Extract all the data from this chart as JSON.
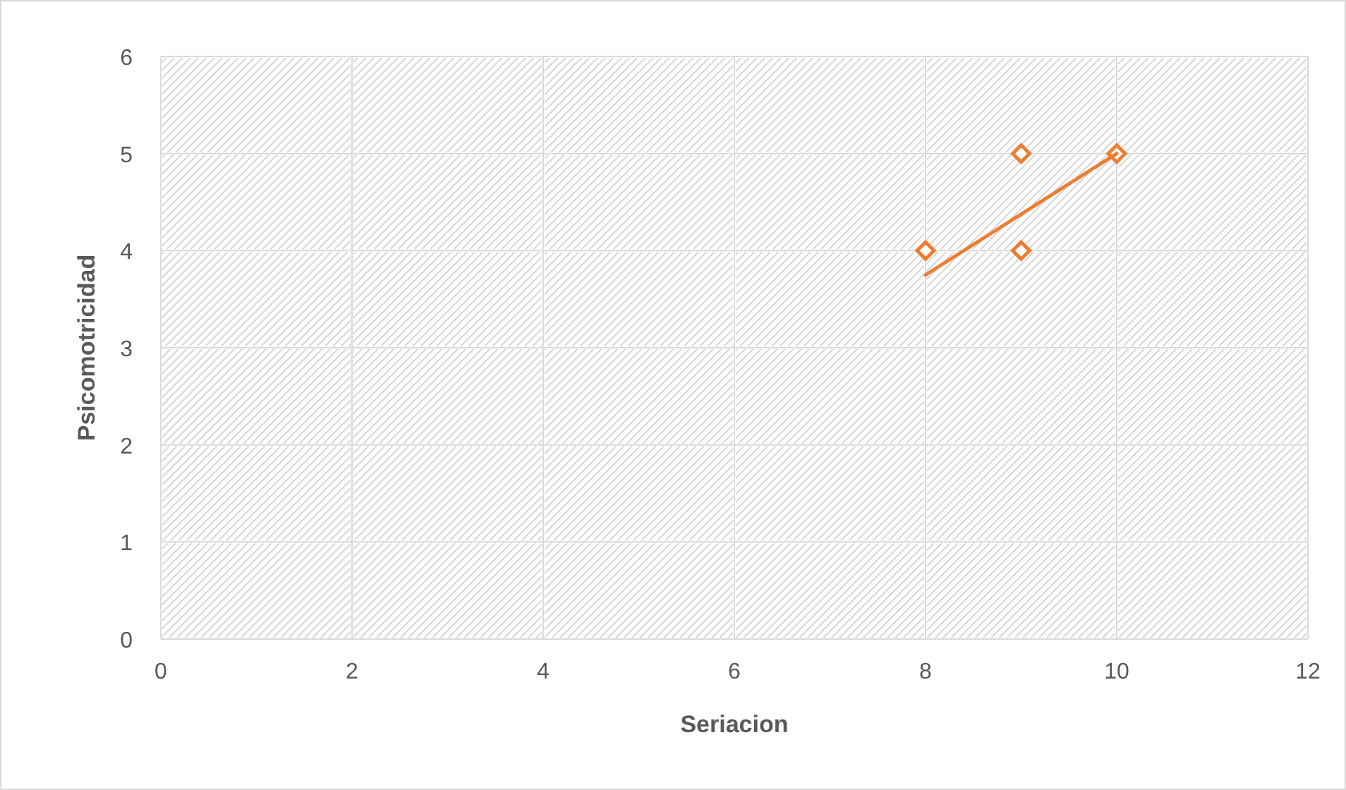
{
  "chart_data": {
    "type": "scatter",
    "xlabel": "Seriacion",
    "ylabel": "Psicomotricidad",
    "xlim": [
      0,
      12
    ],
    "xticks": [
      0,
      2,
      4,
      6,
      8,
      10,
      12
    ],
    "ylim": [
      0,
      6
    ],
    "yticks": [
      0,
      1,
      2,
      3,
      4,
      5,
      6
    ],
    "grid": true,
    "series": [
      {
        "marker": "diamond",
        "color": "#ed7d31",
        "x": [
          8,
          9,
          9,
          10
        ],
        "values": [
          4,
          5,
          4,
          5
        ]
      },
      {
        "type": "line",
        "marker": "none",
        "color": "#ed7d31",
        "x": [
          8,
          10
        ],
        "values": [
          3.75,
          5
        ]
      }
    ]
  }
}
